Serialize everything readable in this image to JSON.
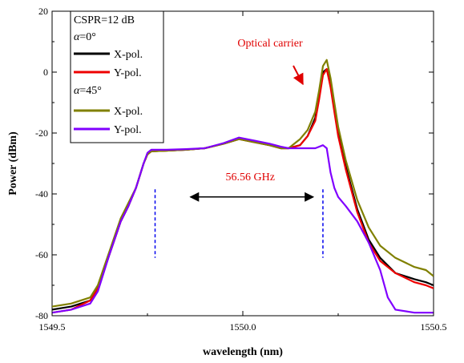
{
  "chart_data": {
    "type": "line",
    "xlabel": "wavelength (nm)",
    "ylabel": "Power (dBm)",
    "xlim": [
      1549.5,
      1550.5
    ],
    "ylim": [
      -80,
      20
    ],
    "xticks": [
      1549.5,
      1550.0,
      1550.5
    ],
    "xtick_labels": [
      "1549.5",
      "1550.0",
      "1550.5"
    ],
    "yticks": [
      -80,
      -60,
      -40,
      -20,
      0,
      20
    ],
    "ytick_labels": [
      "-80",
      "-60",
      "-40",
      "-20",
      "0",
      "20"
    ],
    "grid": false,
    "legend": {
      "placement": "top-left",
      "header": "CSPR=12 dB",
      "group1_title": "α=0°",
      "group2_title": "α=45°",
      "alpha_symbol": "α",
      "group1_angle": "=0°",
      "group2_angle": "=45°"
    },
    "annotations": {
      "carrier_label": "Optical carrier",
      "bandwidth_label": "56.56 GHz",
      "bandwidth_markers_x": [
        1549.77,
        1550.21
      ],
      "arrow_y": -41,
      "color": "#e00000"
    },
    "series": [
      {
        "name": "X-pol.",
        "group": "α=0°",
        "color": "#000000",
        "x": [
          1549.5,
          1549.55,
          1549.6,
          1549.62,
          1549.65,
          1549.68,
          1549.7,
          1549.72,
          1549.74,
          1549.75,
          1549.76,
          1549.8,
          1549.85,
          1549.9,
          1549.95,
          1549.99,
          1550.03,
          1550.07,
          1550.1,
          1550.12,
          1550.15,
          1550.17,
          1550.19,
          1550.2,
          1550.21,
          1550.22,
          1550.23,
          1550.24,
          1550.25,
          1550.27,
          1550.3,
          1550.33,
          1550.36,
          1550.4,
          1550.45,
          1550.48,
          1550.5
        ],
        "y": [
          -78,
          -77,
          -75,
          -71,
          -60,
          -49,
          -44,
          -38,
          -30,
          -27,
          -26,
          -25.8,
          -25.5,
          -25,
          -23.5,
          -22,
          -23,
          -24,
          -25,
          -25,
          -24,
          -21,
          -15,
          -8,
          0,
          1,
          -4,
          -12,
          -20,
          -31,
          -45,
          -55,
          -61,
          -66,
          -68,
          -69,
          -70
        ]
      },
      {
        "name": "Y-pol.",
        "group": "α=0°",
        "color": "#ee0000",
        "x": [
          1549.5,
          1549.55,
          1549.6,
          1549.62,
          1549.65,
          1549.68,
          1549.7,
          1549.72,
          1549.74,
          1549.75,
          1549.76,
          1549.8,
          1549.85,
          1549.9,
          1549.95,
          1549.99,
          1550.03,
          1550.07,
          1550.1,
          1550.12,
          1550.15,
          1550.17,
          1550.19,
          1550.2,
          1550.21,
          1550.22,
          1550.23,
          1550.24,
          1550.25,
          1550.27,
          1550.3,
          1550.33,
          1550.36,
          1550.4,
          1550.45,
          1550.48,
          1550.5
        ],
        "y": [
          -79,
          -78,
          -75,
          -71,
          -60,
          -49,
          -44,
          -38,
          -30,
          -27,
          -26,
          -25.8,
          -25.5,
          -25,
          -23.5,
          -22,
          -23,
          -24,
          -25,
          -25,
          -24,
          -21,
          -16,
          -9,
          -1,
          1,
          -5,
          -13,
          -21,
          -32,
          -46,
          -56,
          -62,
          -66,
          -69,
          -70,
          -71
        ]
      },
      {
        "name": "X-pol.",
        "group": "α=45°",
        "color": "#808000",
        "x": [
          1549.5,
          1549.55,
          1549.6,
          1549.62,
          1549.65,
          1549.68,
          1549.7,
          1549.72,
          1549.74,
          1549.75,
          1549.76,
          1549.8,
          1549.85,
          1549.9,
          1549.95,
          1549.99,
          1550.03,
          1550.07,
          1550.1,
          1550.12,
          1550.15,
          1550.17,
          1550.19,
          1550.2,
          1550.21,
          1550.22,
          1550.23,
          1550.24,
          1550.25,
          1550.27,
          1550.3,
          1550.33,
          1550.36,
          1550.4,
          1550.45,
          1550.48,
          1550.5
        ],
        "y": [
          -77,
          -76,
          -74,
          -70,
          -59,
          -48,
          -43,
          -38,
          -30,
          -27,
          -26,
          -25.8,
          -25.5,
          -25,
          -23.5,
          -22,
          -23,
          -24,
          -25,
          -25,
          -22,
          -19,
          -13,
          -6,
          2,
          4,
          -2,
          -10,
          -18,
          -29,
          -42,
          -51,
          -57,
          -61,
          -64,
          -65,
          -67
        ]
      },
      {
        "name": "Y-pol.",
        "group": "α=45°",
        "color": "#8000ff",
        "x": [
          1549.5,
          1549.55,
          1549.6,
          1549.62,
          1549.65,
          1549.68,
          1549.7,
          1549.72,
          1549.74,
          1549.75,
          1549.76,
          1549.8,
          1549.85,
          1549.9,
          1549.95,
          1549.99,
          1550.03,
          1550.07,
          1550.1,
          1550.12,
          1550.15,
          1550.17,
          1550.19,
          1550.2,
          1550.21,
          1550.22,
          1550.23,
          1550.24,
          1550.25,
          1550.27,
          1550.3,
          1550.33,
          1550.36,
          1550.38,
          1550.4,
          1550.45,
          1550.5
        ],
        "y": [
          -79,
          -78,
          -76,
          -72,
          -60,
          -49,
          -44,
          -38,
          -30,
          -26.5,
          -25.5,
          -25.5,
          -25.3,
          -25,
          -23.3,
          -21.5,
          -22.5,
          -23.5,
          -24.5,
          -25,
          -25,
          -25,
          -25,
          -24.5,
          -24,
          -25,
          -33,
          -38,
          -41,
          -44,
          -49,
          -56,
          -65,
          -74,
          -78,
          -79,
          -79
        ]
      }
    ]
  }
}
